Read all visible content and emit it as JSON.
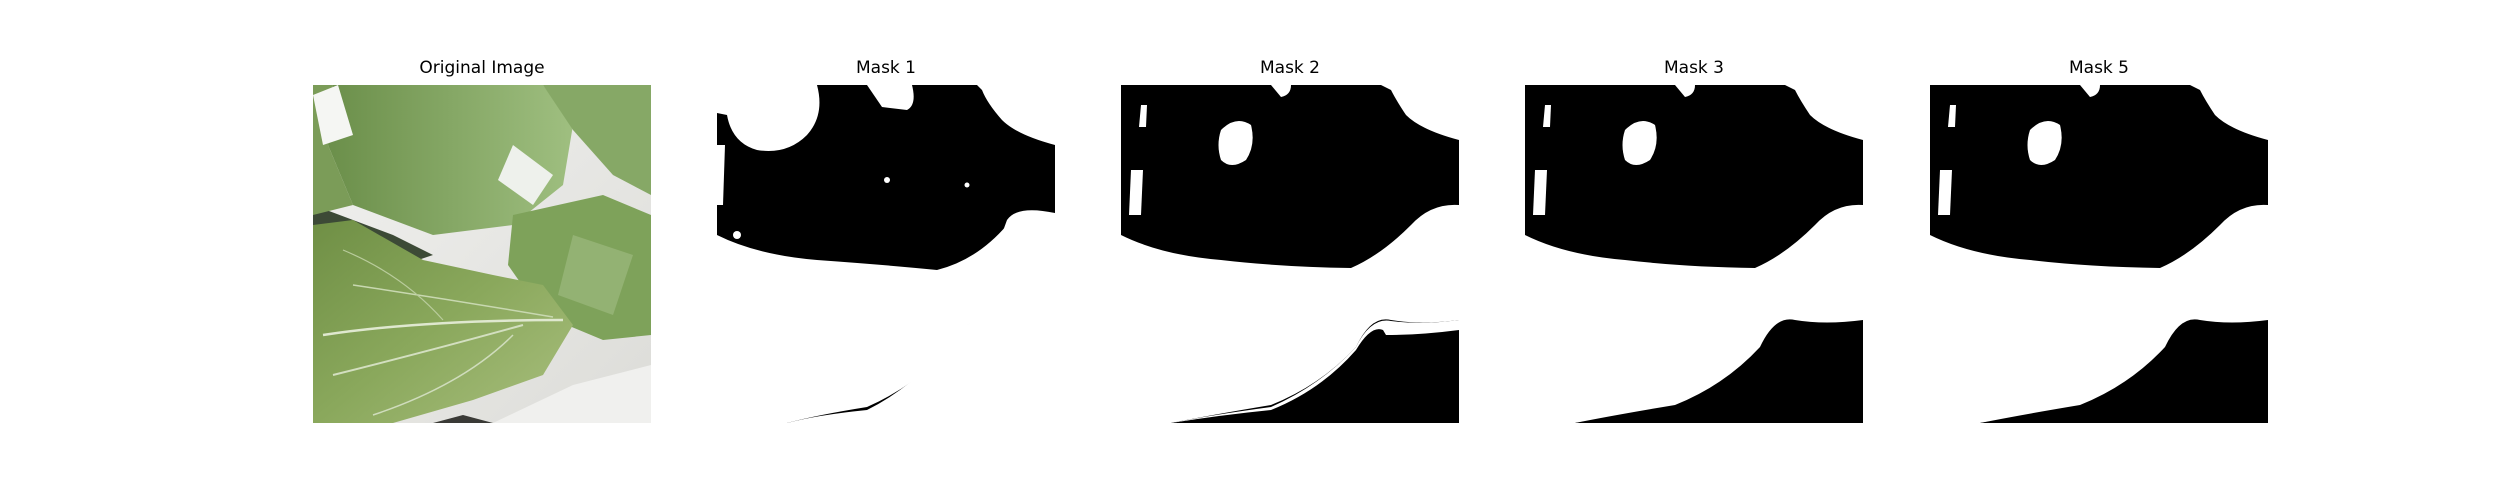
{
  "panels": [
    {
      "title": "Original Image"
    },
    {
      "title": "Mask 1"
    },
    {
      "title": "Mask 2"
    },
    {
      "title": "Mask 3"
    },
    {
      "title": "Mask 5"
    }
  ],
  "colors": {
    "mask_background": "#000000",
    "mask_foreground": "#ffffff",
    "leaf_dark": "#5e7f3c",
    "leaf_mid": "#7ea25a",
    "leaf_light": "#a9c48a",
    "backdrop": "#ecebe7"
  }
}
